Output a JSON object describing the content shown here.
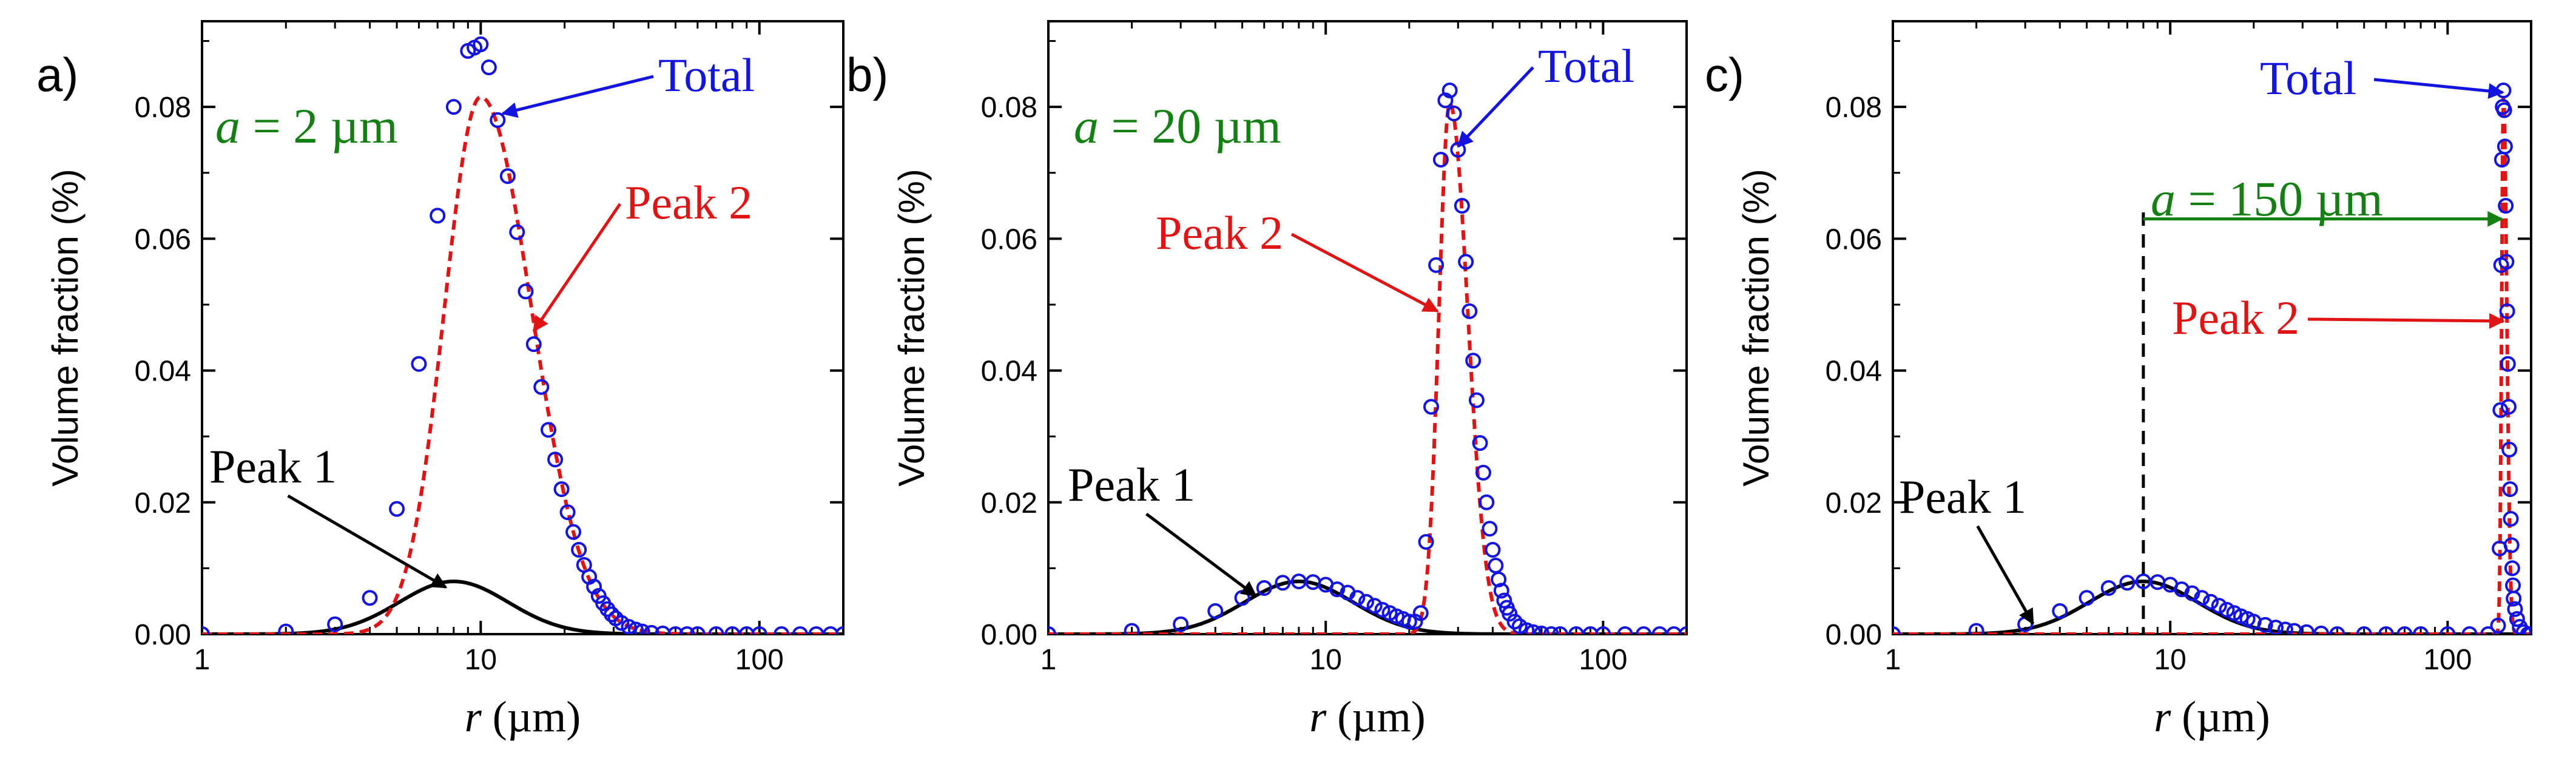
{
  "chart_data": [
    {
      "type": "scatter",
      "panel_label": "a)",
      "xscale": "log",
      "xlim": [
        1,
        200
      ],
      "ylim": [
        0,
        0.093
      ],
      "xticks": [
        1,
        10,
        100
      ],
      "xtick_labels": [
        "1",
        "10",
        "100"
      ],
      "yticks": [
        0,
        0.02,
        0.04,
        0.06,
        0.08
      ],
      "ytick_labels": [
        "0.00",
        "0.02",
        "0.04",
        "0.06",
        "0.08"
      ],
      "xlabel": {
        "italic": "r",
        "rest": " (µm)"
      },
      "ylabel": "Volume fraction (%)",
      "param_label": {
        "italic": "a",
        "rest": " = 2 µm"
      },
      "total_points": [
        [
          1,
          0
        ],
        [
          2,
          0.0004
        ],
        [
          3,
          0.0015
        ],
        [
          4,
          0.0055
        ],
        [
          5,
          0.019
        ],
        [
          6,
          0.041
        ],
        [
          7,
          0.0635
        ],
        [
          8,
          0.08
        ],
        [
          9,
          0.0885
        ],
        [
          9.5,
          0.089
        ],
        [
          10,
          0.0895
        ],
        [
          10.7,
          0.086
        ],
        [
          11.5,
          0.078
        ],
        [
          12.5,
          0.0695
        ],
        [
          13.5,
          0.061
        ],
        [
          14.5,
          0.052
        ],
        [
          15.5,
          0.044
        ],
        [
          16.5,
          0.0375
        ],
        [
          17.5,
          0.031
        ],
        [
          18.5,
          0.0265
        ],
        [
          19.5,
          0.022
        ],
        [
          20.5,
          0.0185
        ],
        [
          21.5,
          0.0155
        ],
        [
          22.5,
          0.0128
        ],
        [
          23.5,
          0.0105
        ],
        [
          24.5,
          0.0087
        ],
        [
          25.5,
          0.0072
        ],
        [
          26.5,
          0.0058
        ],
        [
          27.5,
          0.0047
        ],
        [
          28.5,
          0.0038
        ],
        [
          29.5,
          0.003
        ],
        [
          30.5,
          0.0024
        ],
        [
          32,
          0.0017
        ],
        [
          34,
          0.0011
        ],
        [
          36,
          0.0007
        ],
        [
          38,
          0.0004
        ],
        [
          41,
          0.0002
        ],
        [
          45,
          0.0001
        ],
        [
          50,
          0
        ],
        [
          55,
          0
        ],
        [
          60,
          0
        ],
        [
          70,
          0
        ],
        [
          80,
          0
        ],
        [
          90,
          0
        ],
        [
          100,
          0
        ],
        [
          120,
          0
        ],
        [
          140,
          0
        ],
        [
          160,
          0
        ],
        [
          180,
          0
        ],
        [
          200,
          0
        ]
      ],
      "peak1": {
        "center": 8,
        "width_ln": 0.45,
        "height": 0.008
      },
      "peak2": {
        "center": 10,
        "width_ln_left": 0.3,
        "width_ln_right": 0.42,
        "height": 0.0815
      },
      "annotations": [
        {
          "text": "Total",
          "color": "#1414e0",
          "arrow_tip": [
            12,
            0.079
          ]
        },
        {
          "text": "Peak 2",
          "color": "#e01414",
          "arrow_tip": [
            15.5,
            0.046
          ]
        },
        {
          "text": "Peak 1",
          "color": "#000000",
          "arrow_tip": [
            7.5,
            0.0071
          ]
        }
      ]
    },
    {
      "type": "scatter",
      "panel_label": "b)",
      "xscale": "log",
      "xlim": [
        1,
        200
      ],
      "ylim": [
        0,
        0.093
      ],
      "xticks": [
        1,
        10,
        100
      ],
      "xtick_labels": [
        "1",
        "10",
        "100"
      ],
      "yticks": [
        0,
        0.02,
        0.04,
        0.06,
        0.08
      ],
      "ytick_labels": [
        "0.00",
        "0.02",
        "0.04",
        "0.06",
        "0.08"
      ],
      "xlabel": {
        "italic": "r",
        "rest": " (µm)"
      },
      "ylabel": "Volume fraction (%)",
      "param_label": {
        "italic": "a",
        "rest": " = 20 µm"
      },
      "total_points": [
        [
          1,
          0
        ],
        [
          2,
          0.0005
        ],
        [
          3,
          0.0015
        ],
        [
          4,
          0.0035
        ],
        [
          5,
          0.0055
        ],
        [
          6,
          0.007
        ],
        [
          7,
          0.0078
        ],
        [
          8,
          0.008
        ],
        [
          9,
          0.0079
        ],
        [
          10,
          0.0075
        ],
        [
          11,
          0.0068
        ],
        [
          12,
          0.0063
        ],
        [
          13,
          0.0055
        ],
        [
          14,
          0.0049
        ],
        [
          15,
          0.0043
        ],
        [
          16,
          0.0037
        ],
        [
          17,
          0.0032
        ],
        [
          18,
          0.0027
        ],
        [
          19,
          0.0023
        ],
        [
          20,
          0.0019
        ],
        [
          21,
          0.0019
        ],
        [
          22,
          0.0032
        ],
        [
          23,
          0.014
        ],
        [
          24,
          0.0345
        ],
        [
          25,
          0.056
        ],
        [
          26,
          0.072
        ],
        [
          27,
          0.081
        ],
        [
          28,
          0.0825
        ],
        [
          29,
          0.079
        ],
        [
          30,
          0.0735
        ],
        [
          31,
          0.065
        ],
        [
          32,
          0.0565
        ],
        [
          33,
          0.049
        ],
        [
          34,
          0.0415
        ],
        [
          35,
          0.0355
        ],
        [
          36,
          0.029
        ],
        [
          37,
          0.0245
        ],
        [
          38,
          0.02
        ],
        [
          39,
          0.016
        ],
        [
          40,
          0.0128
        ],
        [
          41,
          0.0104
        ],
        [
          42,
          0.0083
        ],
        [
          43,
          0.0066
        ],
        [
          44,
          0.0051
        ],
        [
          45,
          0.004
        ],
        [
          46,
          0.0031
        ],
        [
          48,
          0.0019
        ],
        [
          50,
          0.0012
        ],
        [
          53,
          0.0006
        ],
        [
          56,
          0.0003
        ],
        [
          60,
          0.0001
        ],
        [
          65,
          0
        ],
        [
          70,
          0
        ],
        [
          80,
          0
        ],
        [
          90,
          0
        ],
        [
          100,
          0
        ],
        [
          120,
          0
        ],
        [
          140,
          0
        ],
        [
          160,
          0
        ],
        [
          180,
          0
        ],
        [
          200,
          0
        ]
      ],
      "peak1": {
        "center": 8,
        "width_ln": 0.45,
        "height": 0.008
      },
      "peak2": {
        "center": 28,
        "width_ln_left": 0.09,
        "width_ln_right": 0.15,
        "height": 0.0805
      },
      "annotations": [
        {
          "text": "Total",
          "color": "#1414e0",
          "arrow_tip": [
            30,
            0.074
          ]
        },
        {
          "text": "Peak 2",
          "color": "#e01414",
          "arrow_tip": [
            25.3,
            0.049
          ]
        },
        {
          "text": "Peak 1",
          "color": "#000000",
          "arrow_tip": [
            5.6,
            0.0058
          ]
        }
      ]
    },
    {
      "type": "scatter",
      "panel_label": "c)",
      "xscale": "log",
      "xlim": [
        1,
        200
      ],
      "ylim": [
        0,
        0.093
      ],
      "xticks": [
        1,
        10,
        100
      ],
      "xtick_labels": [
        "1",
        "10",
        "100"
      ],
      "yticks": [
        0,
        0.02,
        0.04,
        0.06,
        0.08
      ],
      "ytick_labels": [
        "0.00",
        "0.02",
        "0.04",
        "0.06",
        "0.08"
      ],
      "xlabel": {
        "italic": "r",
        "rest": " (µm)"
      },
      "ylabel": "Volume fraction (%)",
      "param_label": {
        "italic": "a",
        "rest": " = 150 µm"
      },
      "dashed_line_x": 8,
      "span_arrow": {
        "from": 8,
        "to": 160,
        "y": 0.063
      },
      "total_points": [
        [
          1,
          0
        ],
        [
          2,
          0.0005
        ],
        [
          3,
          0.0015
        ],
        [
          4,
          0.0035
        ],
        [
          5,
          0.0055
        ],
        [
          6,
          0.007
        ],
        [
          7,
          0.0078
        ],
        [
          8,
          0.008
        ],
        [
          9,
          0.0079
        ],
        [
          10,
          0.0075
        ],
        [
          11,
          0.0068
        ],
        [
          12,
          0.0062
        ],
        [
          13,
          0.0055
        ],
        [
          14,
          0.0049
        ],
        [
          15,
          0.0043
        ],
        [
          16,
          0.0037
        ],
        [
          17,
          0.0032
        ],
        [
          18,
          0.0027
        ],
        [
          19,
          0.0023
        ],
        [
          20,
          0.0019
        ],
        [
          22,
          0.0014
        ],
        [
          24,
          0.001
        ],
        [
          26,
          0.0007
        ],
        [
          28,
          0.0005
        ],
        [
          31,
          0.0003
        ],
        [
          35,
          0.0001
        ],
        [
          40,
          0
        ],
        [
          50,
          0
        ],
        [
          60,
          0
        ],
        [
          70,
          0
        ],
        [
          80,
          0
        ],
        [
          100,
          0
        ],
        [
          120,
          0
        ],
        [
          140,
          0
        ],
        [
          152,
          0.0013
        ],
        [
          154,
          0.013
        ],
        [
          155,
          0.034
        ],
        [
          156,
          0.056
        ],
        [
          157,
          0.072
        ],
        [
          158,
          0.08
        ],
        [
          159,
          0.0825
        ],
        [
          160,
          0.0795
        ],
        [
          161,
          0.074
        ],
        [
          162,
          0.065
        ],
        [
          163,
          0.0565
        ],
        [
          164,
          0.049
        ],
        [
          165,
          0.041
        ],
        [
          166,
          0.0345
        ],
        [
          167,
          0.028
        ],
        [
          168,
          0.022
        ],
        [
          169,
          0.0175
        ],
        [
          170,
          0.0135
        ],
        [
          171,
          0.01
        ],
        [
          172,
          0.0074
        ],
        [
          173,
          0.0054
        ],
        [
          175,
          0.0038
        ],
        [
          178,
          0.0023
        ],
        [
          182,
          0.0011
        ],
        [
          188,
          0.0003
        ],
        [
          195,
          0
        ],
        [
          200,
          0
        ]
      ],
      "peak1": {
        "center": 8,
        "width_ln": 0.45,
        "height": 0.008
      },
      "peak2": {
        "center": 159,
        "width_ln_left": 0.015,
        "width_ln_right": 0.028,
        "height": 0.0815
      },
      "annotations": [
        {
          "text": "Total",
          "color": "#1414e0",
          "arrow_tip": [
            158,
            0.0822
          ]
        },
        {
          "text": "Peak 2",
          "color": "#e01414",
          "arrow_tip": [
            159,
            0.0475
          ]
        },
        {
          "text": "Peak 1",
          "color": "#000000",
          "arrow_tip": [
            3.2,
            0.0016
          ]
        }
      ]
    }
  ],
  "colors": {
    "total": "#1414e0",
    "peak2": "#e01414",
    "peak1": "#000000",
    "param": "#148014",
    "axis": "#000000"
  }
}
